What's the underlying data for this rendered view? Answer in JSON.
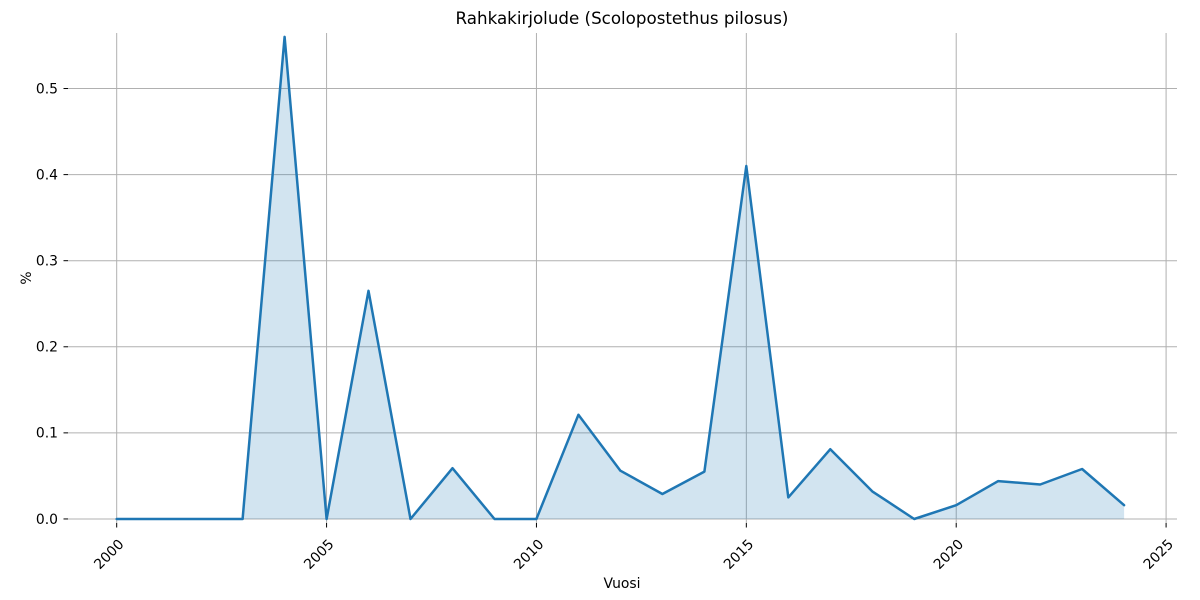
{
  "chart_data": {
    "type": "area",
    "title": "Rahkakirjolude (Scolopostethus pilosus)",
    "xlabel": "Vuosi",
    "ylabel": "%",
    "x": [
      2000,
      2001,
      2002,
      2003,
      2004,
      2005,
      2006,
      2007,
      2008,
      2009,
      2010,
      2011,
      2012,
      2013,
      2014,
      2015,
      2016,
      2017,
      2018,
      2019,
      2020,
      2021,
      2022,
      2023,
      2024
    ],
    "values": [
      0.0,
      0.0,
      0.0,
      0.0,
      0.56,
      0.0,
      0.265,
      0.0,
      0.059,
      0.0,
      0.0,
      0.121,
      0.056,
      0.029,
      0.055,
      0.41,
      0.025,
      0.081,
      0.032,
      0.0,
      0.016,
      0.044,
      0.04,
      0.058,
      0.016
    ],
    "xticks": [
      2000,
      2005,
      2010,
      2015,
      2020,
      2025
    ],
    "yticks": [
      "0.0",
      "0.1",
      "0.2",
      "0.3",
      "0.4",
      "0.5"
    ],
    "xlim": [
      1998.84,
      2025.26
    ],
    "ylim": [
      -0.0047,
      0.5645
    ],
    "grid": true,
    "legend": false,
    "xtick_rotation": 45,
    "line_color": "#1f77b4",
    "fill_color": "rgba(31,119,180,0.2)",
    "grid_color": "#b0b0b0",
    "tick_color": "#000000"
  }
}
